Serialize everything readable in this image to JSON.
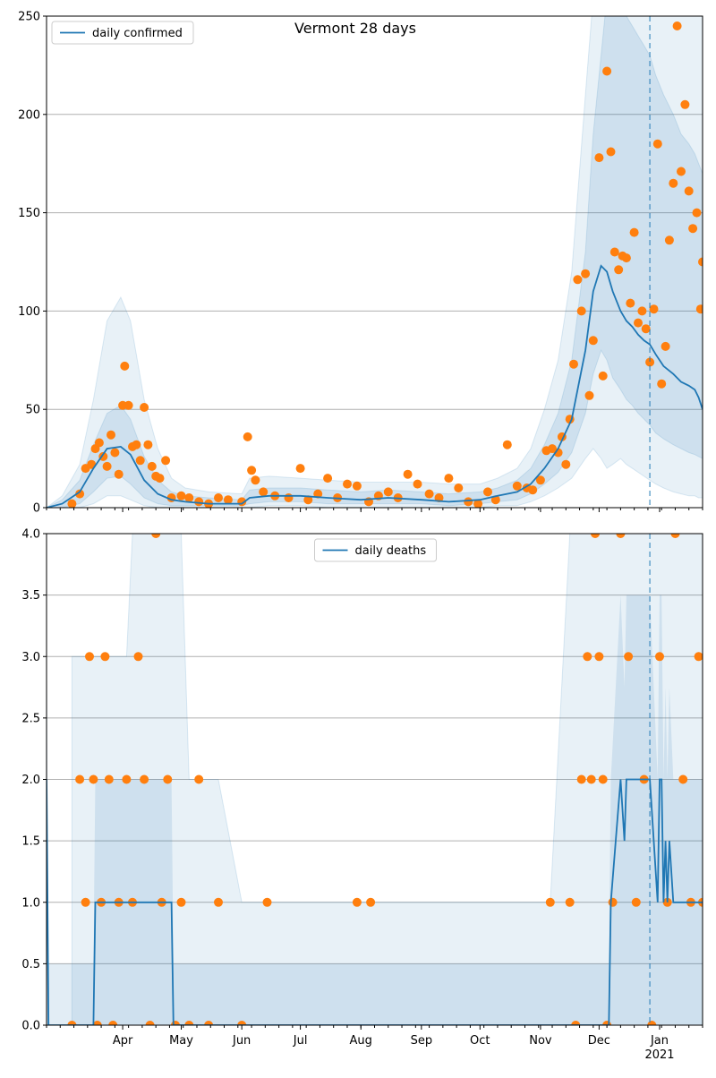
{
  "title": "Vermont 28 days",
  "colors": {
    "line": "#1f77b4",
    "points": "#ff7f0e",
    "band": "#1f77b4",
    "grid": "#b0b0b0",
    "vline": "#1f77b4"
  },
  "chart_data": [
    {
      "type": "line",
      "panel": "top",
      "title": "Vermont 28 days",
      "legend": [
        "daily confirmed"
      ],
      "legend_location": "upper-left",
      "grid": true,
      "x_range": [
        "2020-02-22",
        "2021-01-23"
      ],
      "ylim": [
        0,
        250
      ],
      "yticks": [
        "0",
        "50",
        "100",
        "150",
        "200",
        "250"
      ],
      "vline_x": "2020-12-27",
      "series": [
        {
          "name": "daily confirmed",
          "x": [
            "2020-02-22",
            "2020-03-01",
            "2020-03-10",
            "2020-03-17",
            "2020-03-24",
            "2020-03-31",
            "2020-04-05",
            "2020-04-12",
            "2020-04-19",
            "2020-04-26",
            "2020-05-03",
            "2020-05-15",
            "2020-06-01",
            "2020-06-05",
            "2020-06-15",
            "2020-07-01",
            "2020-07-15",
            "2020-08-01",
            "2020-08-15",
            "2020-09-01",
            "2020-09-15",
            "2020-10-01",
            "2020-10-10",
            "2020-10-20",
            "2020-10-27",
            "2020-11-03",
            "2020-11-10",
            "2020-11-17",
            "2020-11-24",
            "2020-11-28",
            "2020-12-02",
            "2020-12-05",
            "2020-12-08",
            "2020-12-12",
            "2020-12-15",
            "2020-12-18",
            "2020-12-21",
            "2020-12-24",
            "2020-12-27",
            "2020-12-30",
            "2021-01-03",
            "2021-01-08",
            "2021-01-12",
            "2021-01-16",
            "2021-01-19",
            "2021-01-21",
            "2021-01-23"
          ],
          "y": [
            0,
            2,
            8,
            20,
            30,
            31,
            27,
            14,
            7,
            4,
            3,
            2,
            2,
            5,
            6,
            6,
            5,
            4,
            5,
            4,
            3,
            4,
            6,
            8,
            12,
            20,
            30,
            45,
            80,
            110,
            123,
            120,
            110,
            100,
            95,
            92,
            88,
            85,
            83,
            78,
            72,
            68,
            64,
            62,
            60,
            56,
            50
          ]
        }
      ],
      "band_low_inner": [
        0,
        0,
        2,
        8,
        15,
        16,
        12,
        5,
        2,
        1,
        1,
        1,
        1,
        2,
        3,
        3,
        2,
        2,
        2,
        2,
        1,
        2,
        3,
        4,
        7,
        12,
        18,
        28,
        48,
        68,
        80,
        75,
        66,
        60,
        55,
        52,
        48,
        45,
        42,
        38,
        35,
        32,
        30,
        28,
        27,
        26,
        25
      ],
      "band_high_inner": [
        0,
        4,
        14,
        32,
        48,
        52,
        45,
        26,
        14,
        8,
        6,
        5,
        4,
        9,
        10,
        10,
        9,
        8,
        9,
        8,
        7,
        8,
        10,
        14,
        20,
        32,
        48,
        75,
        130,
        190,
        230,
        260,
        260,
        255,
        250,
        245,
        240,
        235,
        230,
        220,
        210,
        200,
        190,
        185,
        180,
        175,
        170
      ],
      "band_low_outer": [
        0,
        0,
        0,
        2,
        6,
        6,
        4,
        1,
        0,
        0,
        0,
        0,
        0,
        0,
        1,
        1,
        0,
        0,
        0,
        0,
        0,
        0,
        1,
        1,
        3,
        6,
        10,
        15,
        25,
        30,
        25,
        20,
        22,
        25,
        22,
        20,
        18,
        16,
        14,
        12,
        10,
        8,
        7,
        6,
        6,
        5,
        5
      ],
      "band_high_outer": [
        0,
        6,
        22,
        55,
        95,
        107,
        95,
        55,
        30,
        15,
        10,
        8,
        7,
        15,
        16,
        15,
        14,
        13,
        13,
        13,
        12,
        12,
        15,
        20,
        30,
        50,
        75,
        120,
        210,
        260,
        260,
        260,
        260,
        260,
        260,
        260,
        260,
        260,
        260,
        260,
        260,
        260,
        260,
        260,
        260,
        260,
        260
      ],
      "observations_x": [
        "2020-03-06",
        "2020-03-10",
        "2020-03-13",
        "2020-03-16",
        "2020-03-18",
        "2020-03-20",
        "2020-03-22",
        "2020-03-24",
        "2020-03-26",
        "2020-03-28",
        "2020-03-30",
        "2020-04-01",
        "2020-04-02",
        "2020-04-04",
        "2020-04-06",
        "2020-04-08",
        "2020-04-10",
        "2020-04-12",
        "2020-04-14",
        "2020-04-16",
        "2020-04-18",
        "2020-04-20",
        "2020-04-23",
        "2020-04-26",
        "2020-05-01",
        "2020-05-05",
        "2020-05-10",
        "2020-05-15",
        "2020-05-20",
        "2020-05-25",
        "2020-06-01",
        "2020-06-04",
        "2020-06-06",
        "2020-06-08",
        "2020-06-12",
        "2020-06-18",
        "2020-06-25",
        "2020-07-01",
        "2020-07-05",
        "2020-07-10",
        "2020-07-15",
        "2020-07-20",
        "2020-07-25",
        "2020-07-30",
        "2020-08-05",
        "2020-08-10",
        "2020-08-15",
        "2020-08-20",
        "2020-08-25",
        "2020-08-30",
        "2020-09-05",
        "2020-09-10",
        "2020-09-15",
        "2020-09-20",
        "2020-09-25",
        "2020-09-30",
        "2020-10-05",
        "2020-10-09",
        "2020-10-15",
        "2020-10-20",
        "2020-10-25",
        "2020-10-28",
        "2020-11-01",
        "2020-11-04",
        "2020-11-07",
        "2020-11-10",
        "2020-11-12",
        "2020-11-14",
        "2020-11-16",
        "2020-11-18",
        "2020-11-20",
        "2020-11-22",
        "2020-11-24",
        "2020-11-26",
        "2020-11-28",
        "2020-12-01",
        "2020-12-03",
        "2020-12-05",
        "2020-12-07",
        "2020-12-09",
        "2020-12-11",
        "2020-12-13",
        "2020-12-15",
        "2020-12-17",
        "2020-12-19",
        "2020-12-21",
        "2020-12-23",
        "2020-12-25",
        "2020-12-27",
        "2020-12-29",
        "2020-12-31",
        "2021-01-02",
        "2021-01-04",
        "2021-01-06",
        "2021-01-08",
        "2021-01-10",
        "2021-01-12",
        "2021-01-14",
        "2021-01-16",
        "2021-01-18",
        "2021-01-20",
        "2021-01-22",
        "2021-01-23"
      ],
      "observations_y": [
        2,
        7,
        20,
        22,
        30,
        33,
        26,
        21,
        37,
        28,
        17,
        52,
        72,
        52,
        31,
        32,
        24,
        51,
        32,
        21,
        16,
        15,
        24,
        5,
        6,
        5,
        3,
        2,
        5,
        4,
        3,
        36,
        19,
        14,
        8,
        6,
        5,
        20,
        4,
        7,
        15,
        5,
        12,
        11,
        3,
        6,
        8,
        5,
        17,
        12,
        7,
        5,
        15,
        10,
        3,
        2,
        8,
        4,
        32,
        11,
        10,
        9,
        14,
        29,
        30,
        28,
        36,
        22,
        45,
        73,
        116,
        100,
        119,
        57,
        85,
        178,
        67,
        222,
        181,
        130,
        121,
        128,
        127,
        104,
        140,
        94,
        100,
        91,
        74,
        101,
        185,
        63,
        82,
        136,
        165,
        245,
        171,
        205,
        161,
        142,
        150,
        101,
        125
      ]
    },
    {
      "type": "line",
      "panel": "bottom",
      "legend": [
        "daily deaths"
      ],
      "legend_location": "upper-center",
      "grid": true,
      "x_range": [
        "2020-02-22",
        "2021-01-23"
      ],
      "ylim": [
        0,
        4
      ],
      "yticks": [
        "0.0",
        "0.5",
        "1.0",
        "1.5",
        "2.0",
        "2.5",
        "3.0",
        "3.5",
        "4.0"
      ],
      "xticks": [
        "Apr",
        "May",
        "Jun",
        "Jul",
        "Aug",
        "Sep",
        "Oct",
        "Nov",
        "Dec",
        "Jan"
      ],
      "xticks_dates": [
        "2020-04-01",
        "2020-05-01",
        "2020-06-01",
        "2020-07-01",
        "2020-08-01",
        "2020-09-01",
        "2020-10-01",
        "2020-11-01",
        "2020-12-01",
        "2021-01-01"
      ],
      "x_year_label": "2021",
      "vline_x": "2020-12-27",
      "series": [
        {
          "name": "daily deaths",
          "x": [
            "2020-02-22",
            "2020-02-23",
            "2020-03-01",
            "2020-03-14",
            "2020-03-17",
            "2020-03-18",
            "2020-04-10",
            "2020-04-20",
            "2020-04-26",
            "2020-04-27",
            "2020-12-06",
            "2020-12-07",
            "2020-12-12",
            "2020-12-14",
            "2020-12-15",
            "2020-12-16",
            "2020-12-18",
            "2020-12-27",
            "2020-12-31",
            "2021-01-01",
            "2021-01-02",
            "2021-01-03",
            "2021-01-04",
            "2021-01-05",
            "2021-01-06",
            "2021-01-08",
            "2021-01-10",
            "2021-01-23"
          ],
          "y": [
            2,
            0,
            0,
            0,
            0,
            1,
            1,
            1,
            1,
            0,
            0,
            1,
            2,
            1.5,
            2,
            2,
            2,
            2,
            1,
            2,
            2,
            1,
            1.5,
            1,
            1.5,
            1,
            1,
            1
          ]
        }
      ],
      "observations_x": [
        "2020-03-06",
        "2020-03-10",
        "2020-03-13",
        "2020-03-15",
        "2020-03-17",
        "2020-03-19",
        "2020-03-21",
        "2020-03-23",
        "2020-03-25",
        "2020-03-27",
        "2020-03-30",
        "2020-04-03",
        "2020-04-06",
        "2020-04-09",
        "2020-04-12",
        "2020-04-15",
        "2020-04-18",
        "2020-04-21",
        "2020-04-24",
        "2020-04-28",
        "2020-05-01",
        "2020-05-05",
        "2020-05-10",
        "2020-05-15",
        "2020-05-20",
        "2020-06-01",
        "2020-06-14",
        "2020-07-30",
        "2020-08-06",
        "2020-11-06",
        "2020-11-16",
        "2020-11-19",
        "2020-11-22",
        "2020-11-25",
        "2020-11-27",
        "2020-11-29",
        "2020-12-01",
        "2020-12-03",
        "2020-12-05",
        "2020-12-08",
        "2020-12-12",
        "2020-12-16",
        "2020-12-20",
        "2020-12-24",
        "2020-12-28",
        "2021-01-01",
        "2021-01-05",
        "2021-01-09",
        "2021-01-13",
        "2021-01-17",
        "2021-01-21",
        "2021-01-23"
      ],
      "observations_y": [
        0,
        2,
        1,
        3,
        2,
        0,
        1,
        3,
        2,
        0,
        1,
        2,
        1,
        3,
        2,
        0,
        4,
        1,
        2,
        0,
        1,
        0,
        2,
        0,
        1,
        0,
        1,
        1,
        1,
        1,
        1,
        0,
        2,
        3,
        2,
        4,
        3,
        2,
        0,
        1,
        4,
        3,
        1,
        2,
        0,
        3,
        1,
        4,
        2,
        1,
        3,
        1
      ]
    }
  ]
}
